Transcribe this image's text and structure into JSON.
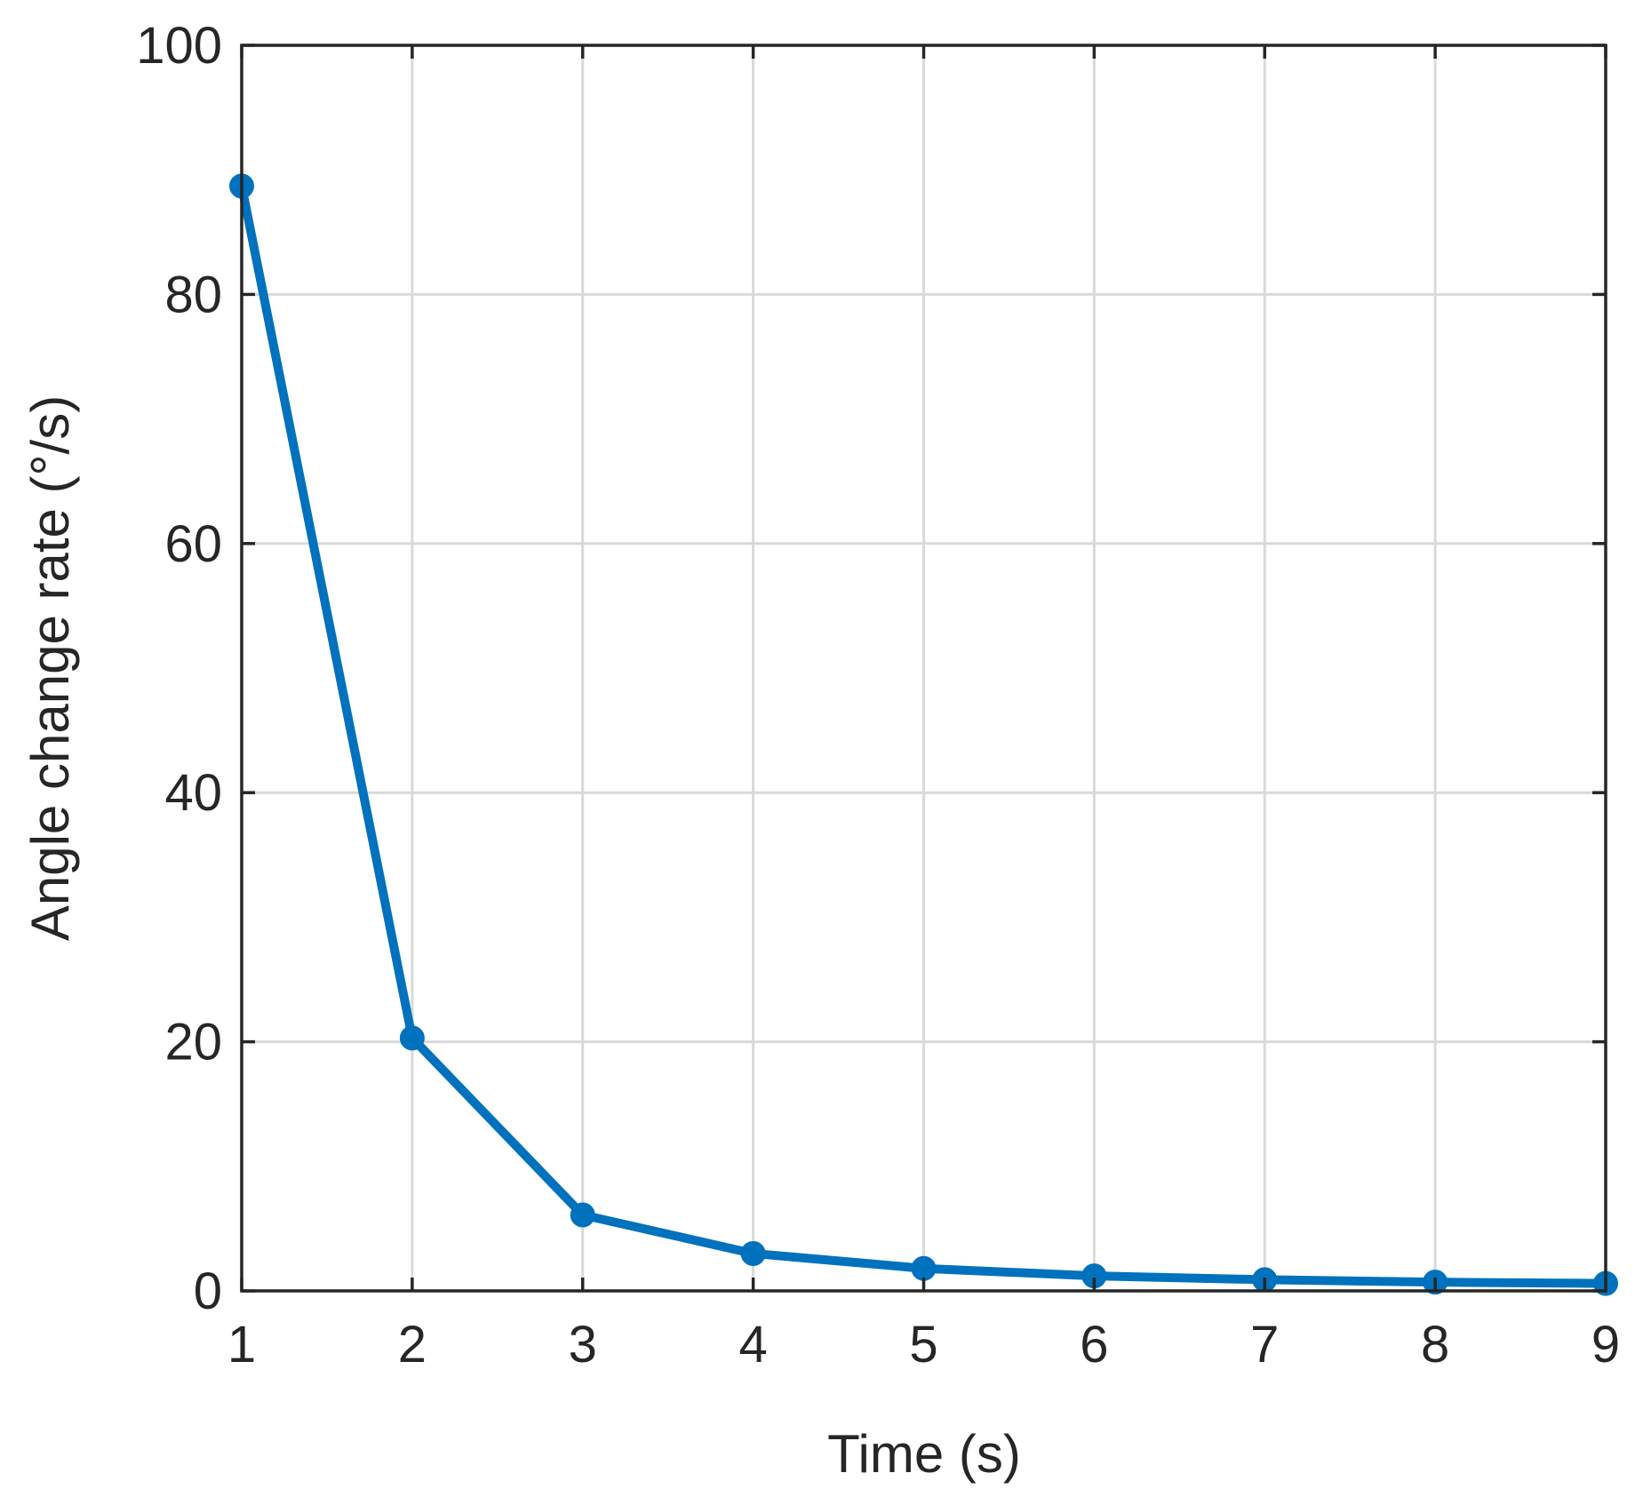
{
  "chart_data": {
    "type": "line",
    "title": "",
    "xlabel": "Time (s)",
    "ylabel": "Angle change rate (°/s)",
    "x": [
      1,
      2,
      3,
      4,
      5,
      6,
      7,
      8,
      9
    ],
    "series": [
      {
        "values": [
          88.7,
          20.3,
          6.1,
          3.0,
          1.8,
          1.2,
          0.9,
          0.7,
          0.6
        ],
        "color": "#0072BD",
        "marker": "circle"
      }
    ],
    "xlim": [
      1,
      9
    ],
    "ylim": [
      0,
      100
    ],
    "xticks": [
      1,
      2,
      3,
      4,
      5,
      6,
      7,
      8,
      9
    ],
    "yticks": [
      0,
      20,
      40,
      60,
      80,
      100
    ],
    "grid": true,
    "box": true,
    "legend": "none"
  }
}
